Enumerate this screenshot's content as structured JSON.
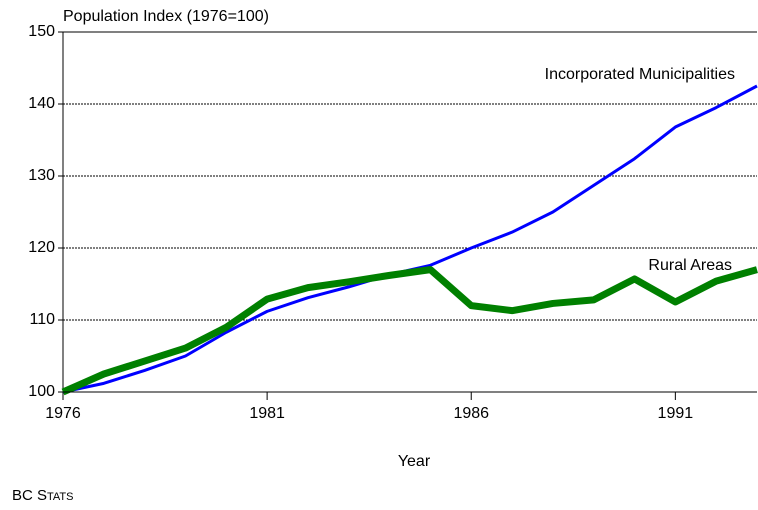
{
  "chart_data": {
    "type": "line",
    "ylabel": "Population Index (1976=100)",
    "xlabel": "Year",
    "source": "BC Stats",
    "x": [
      1976,
      1977,
      1978,
      1979,
      1980,
      1981,
      1982,
      1983,
      1984,
      1985,
      1986,
      1987,
      1988,
      1989,
      1990,
      1991,
      1992,
      1993
    ],
    "series": [
      {
        "name": "Incorporated Municipalities",
        "color": "#0000ff",
        "values": [
          100,
          101.2,
          103,
          105,
          108.3,
          111.2,
          113.1,
          114.6,
          116.3,
          117.6,
          120,
          122.2,
          125,
          128.7,
          132.4,
          136.8,
          139.5,
          142.5
        ]
      },
      {
        "name": "Rural Areas",
        "color": "#008000",
        "values": [
          100,
          102.5,
          104.3,
          106.1,
          109,
          112.9,
          114.5,
          115.3,
          116.2,
          117,
          112,
          111.3,
          112.3,
          112.8,
          115.7,
          112.5,
          115.4,
          117
        ]
      }
    ],
    "xlim": [
      1976,
      1993
    ],
    "xticks": [
      1976,
      1981,
      1986,
      1991
    ],
    "ylim": [
      100,
      150
    ],
    "yticks": [
      100,
      110,
      120,
      130,
      140,
      150
    ],
    "grid": true
  }
}
